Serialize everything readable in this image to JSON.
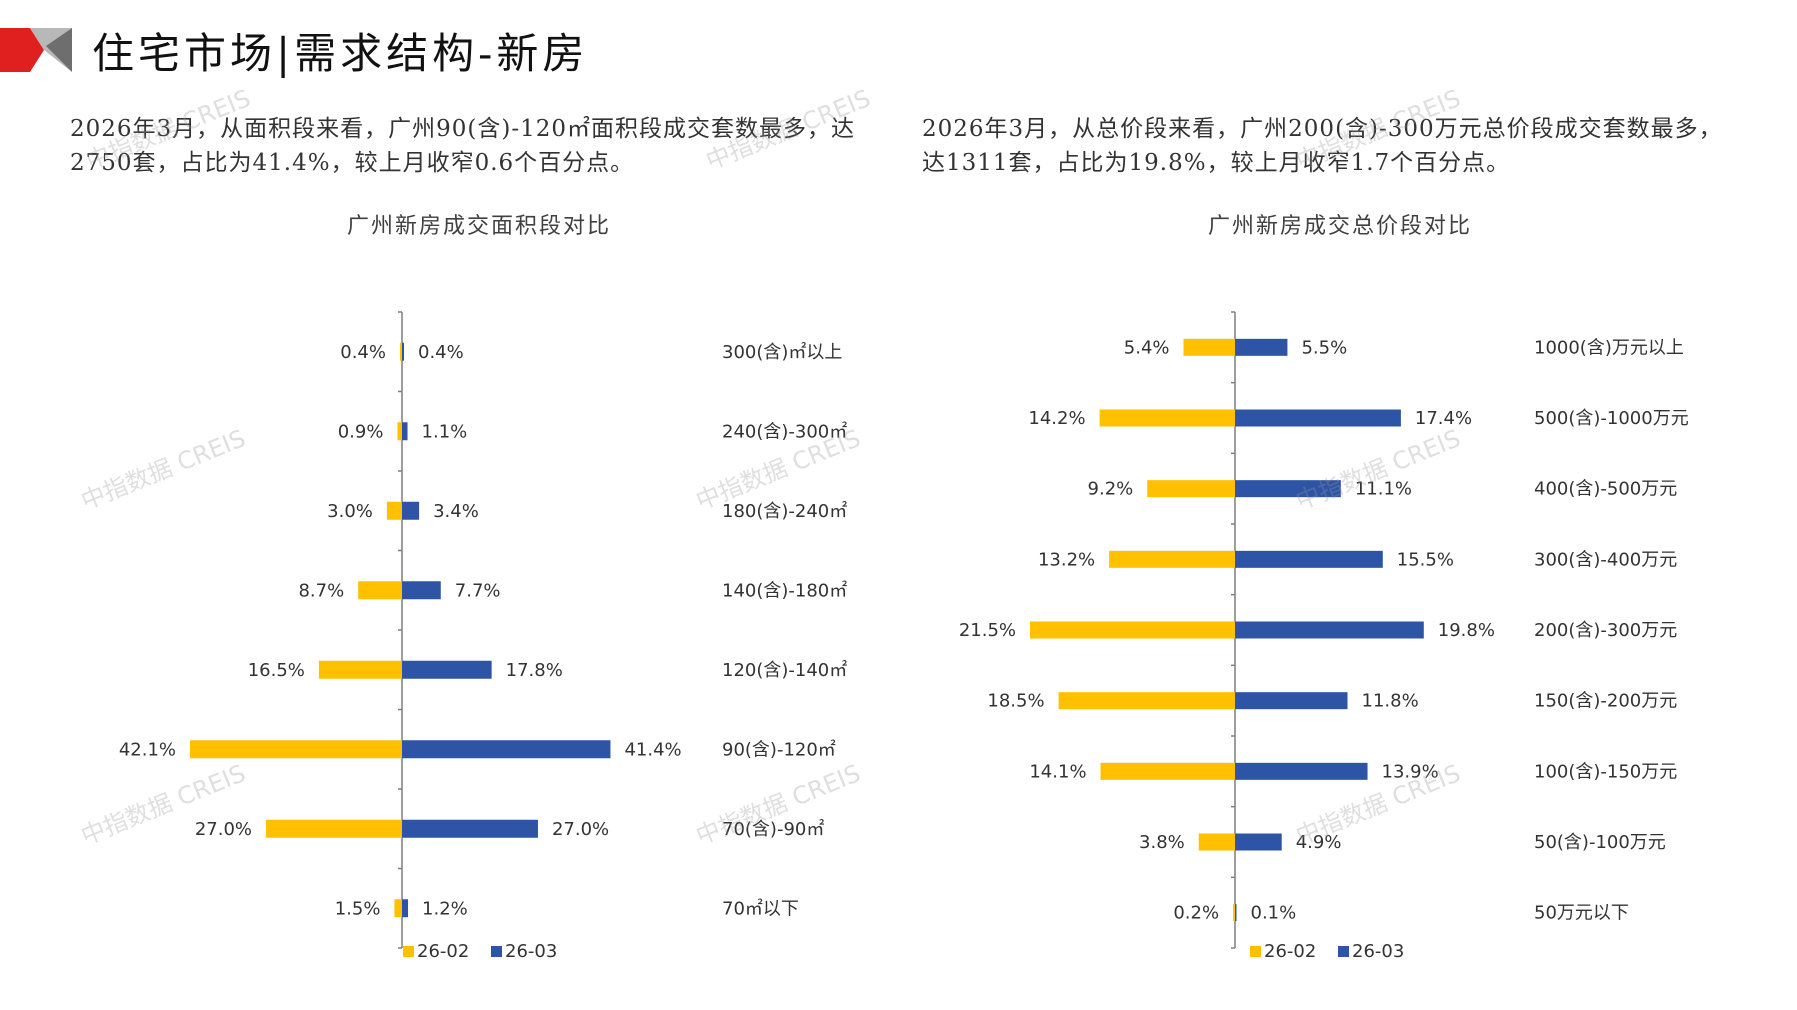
{
  "header": {
    "title": "住宅市场|需求结构-新房"
  },
  "descriptions": {
    "left": "2026年3月，从面积段来看，广州90(含)-120㎡面积段成交套数最多，达2750套，占比为41.4%，较上月收窄0.6个百分点。",
    "right": "2026年3月，从总价段来看，广州200(含)-300万元总价段成交套数最多，达1311套，占比为19.8%，较上月收窄1.7个百分点。"
  },
  "watermark": "中指数据 CREIS",
  "colors": {
    "prev": "#FFC000",
    "curr": "#2E55A5",
    "axis": "#7f7f7f",
    "brand_red": "#E0201F",
    "brand_gray": "#B8B8B8"
  },
  "chart_data": [
    {
      "type": "bar",
      "orientation": "horizontal-butterfly",
      "title": "广州新房成交面积段对比",
      "categories": [
        "300(含)㎡以上",
        "240(含)-300㎡",
        "180(含)-240㎡",
        "140(含)-180㎡",
        "120(含)-140㎡",
        "90(含)-120㎡",
        "70(含)-90㎡",
        "70㎡以下"
      ],
      "series": [
        {
          "name": "26-02",
          "values": [
            0.4,
            0.9,
            3.0,
            8.7,
            16.5,
            42.1,
            27.0,
            1.5
          ],
          "labels": [
            "0.4%",
            "0.9%",
            "3.0%",
            "8.7%",
            "16.5%",
            "42.1%",
            "27.0%",
            "1.5%"
          ]
        },
        {
          "name": "26-03",
          "values": [
            0.4,
            1.1,
            3.4,
            7.7,
            17.8,
            41.4,
            27.0,
            1.2
          ],
          "labels": [
            "0.4%",
            "1.1%",
            "3.4%",
            "7.7%",
            "17.8%",
            "41.4%",
            "27.0%",
            "1.2%"
          ]
        }
      ],
      "unit": "%",
      "legend": "bottom"
    },
    {
      "type": "bar",
      "orientation": "horizontal-butterfly",
      "title": "广州新房成交总价段对比",
      "categories": [
        "1000(含)万元以上",
        "500(含)-1000万元",
        "400(含)-500万元",
        "300(含)-400万元",
        "200(含)-300万元",
        "150(含)-200万元",
        "100(含)-150万元",
        "50(含)-100万元",
        "50万元以下"
      ],
      "series": [
        {
          "name": "26-02",
          "values": [
            5.4,
            14.2,
            9.2,
            13.2,
            21.5,
            18.5,
            14.1,
            3.8,
            0.2
          ],
          "labels": [
            "5.4%",
            "14.2%",
            "9.2%",
            "13.2%",
            "21.5%",
            "18.5%",
            "14.1%",
            "3.8%",
            "0.2%"
          ]
        },
        {
          "name": "26-03",
          "values": [
            5.5,
            17.4,
            11.1,
            15.5,
            19.8,
            11.8,
            13.9,
            4.9,
            0.1
          ],
          "labels": [
            "5.5%",
            "17.4%",
            "11.1%",
            "15.5%",
            "19.8%",
            "11.8%",
            "13.9%",
            "4.9%",
            "0.1%"
          ]
        }
      ],
      "unit": "%",
      "legend": "bottom"
    }
  ]
}
